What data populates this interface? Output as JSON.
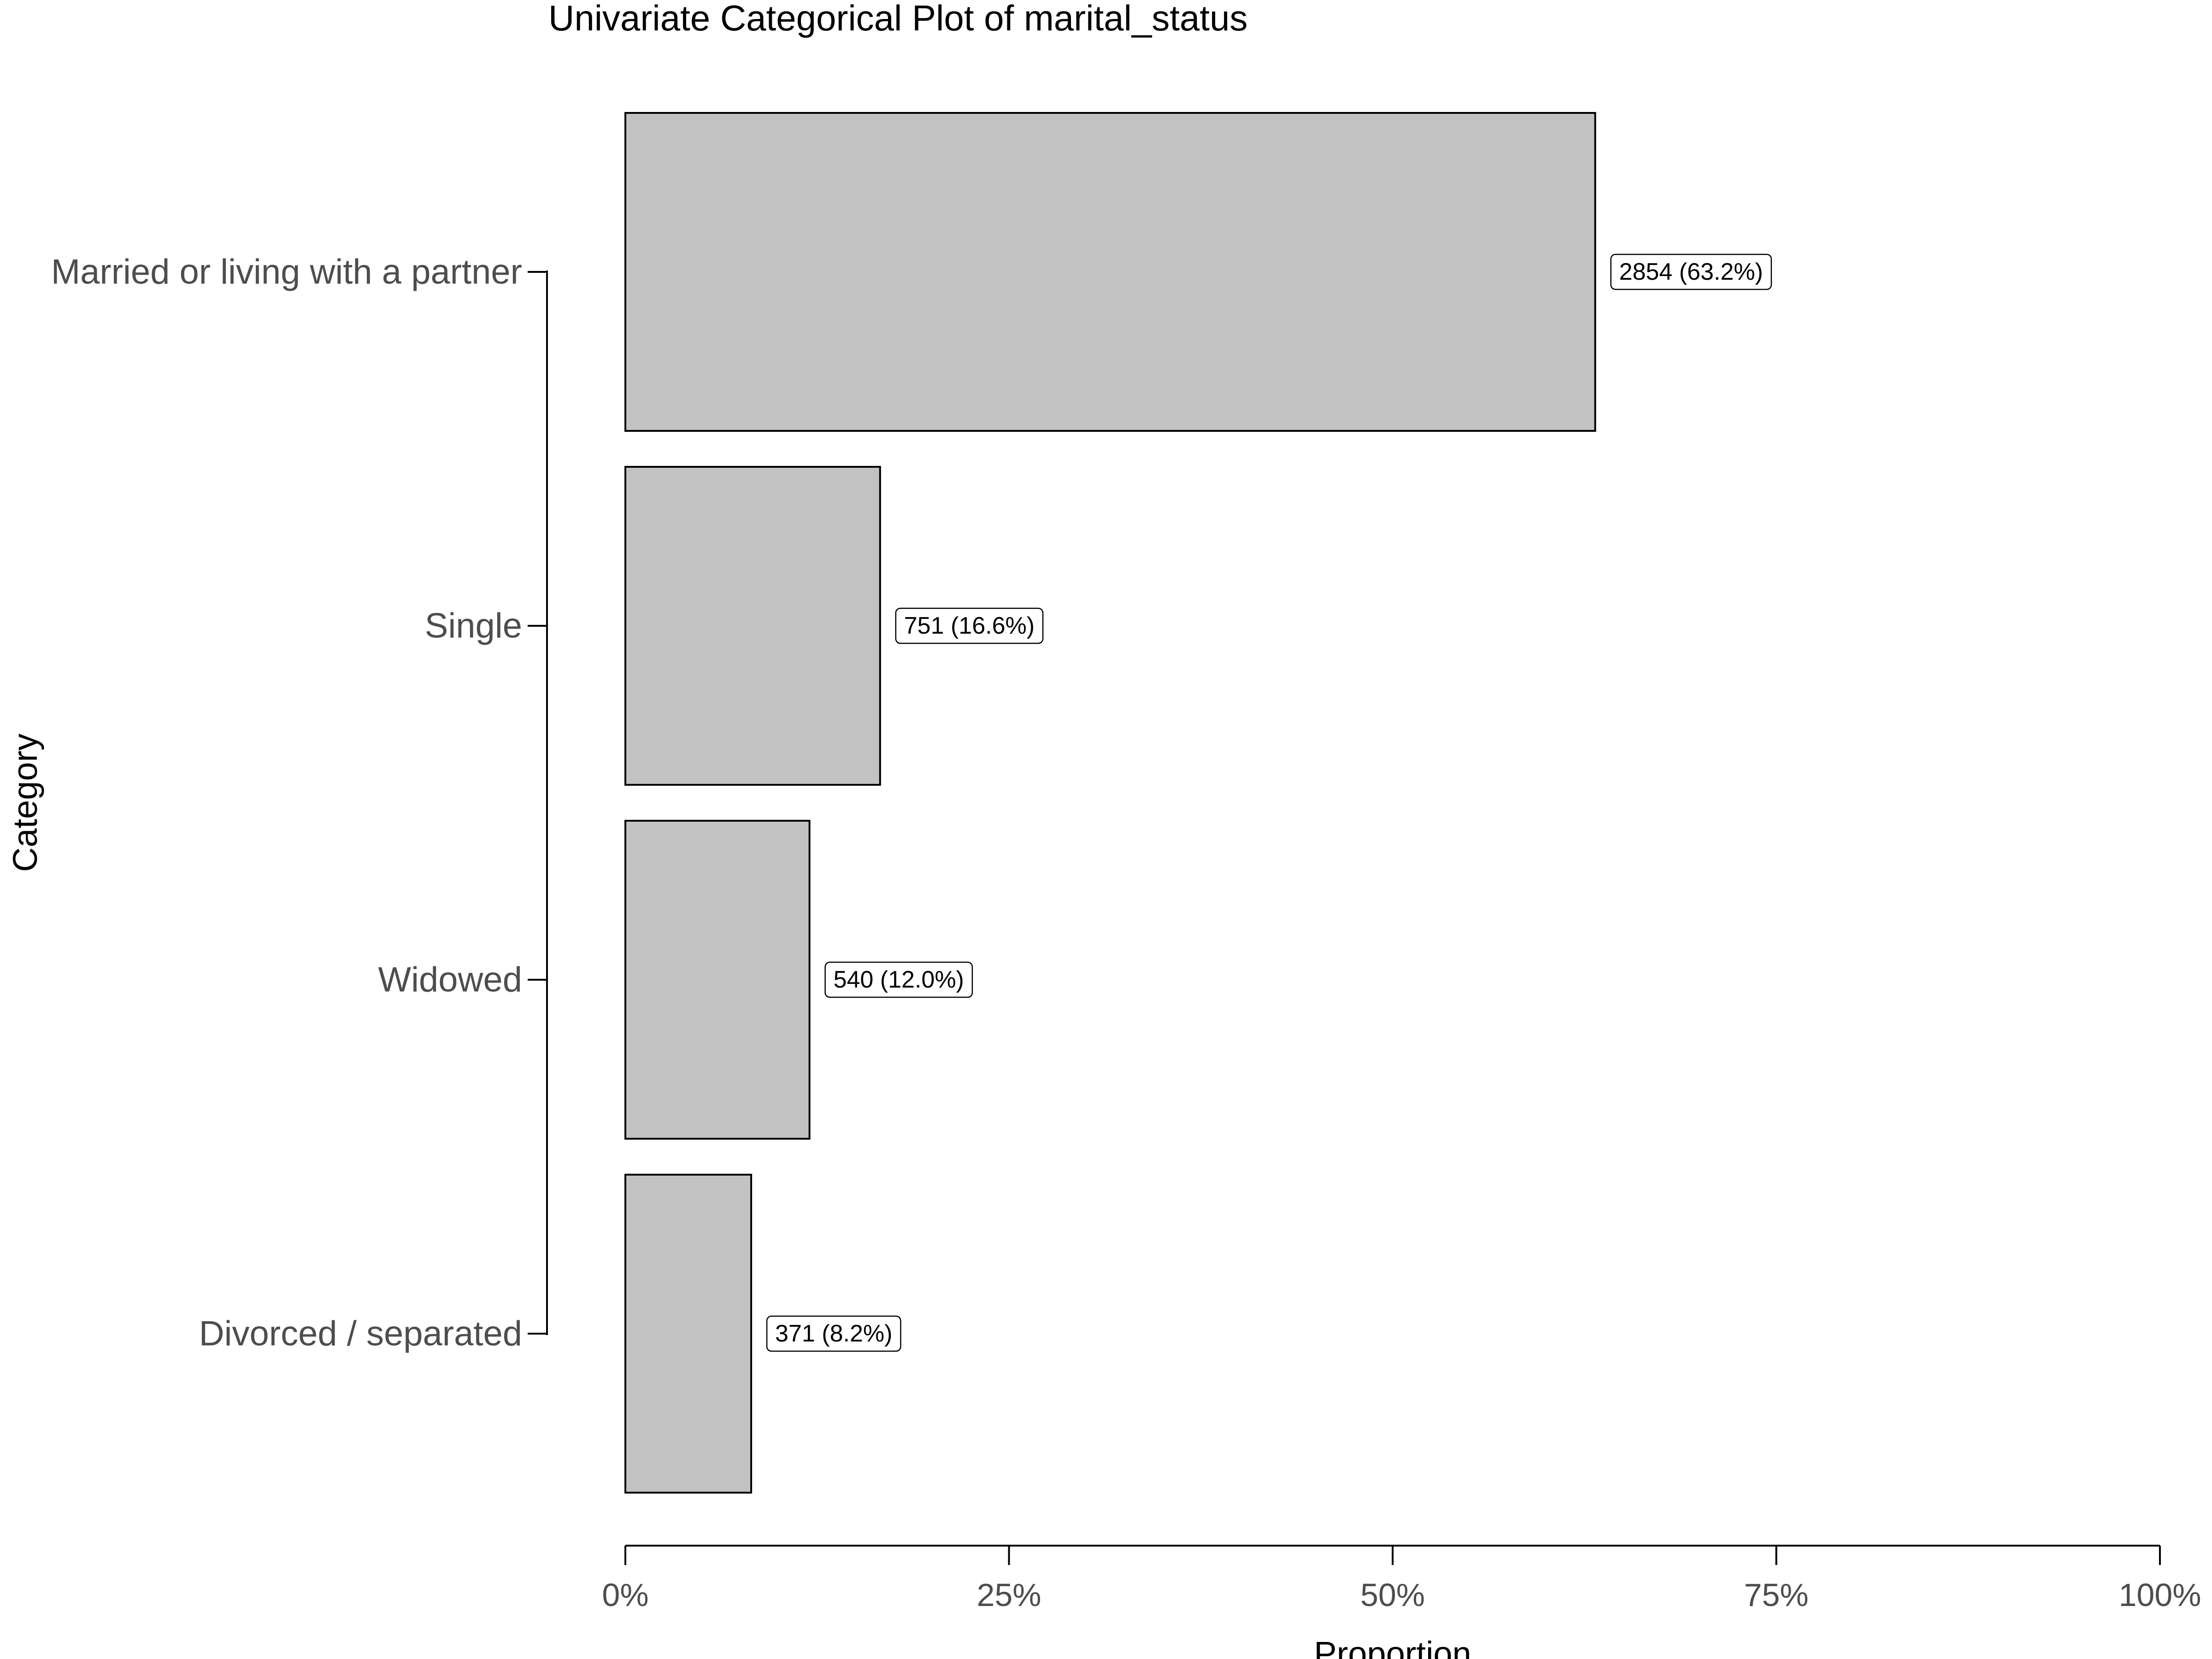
{
  "chart_data": {
    "type": "bar",
    "orientation": "horizontal",
    "title": "Univariate Categorical Plot of marital_status",
    "xlabel": "Proportion",
    "ylabel": "Category",
    "xlim": [
      0,
      1
    ],
    "x_ticks": [
      {
        "value": 0,
        "label": "0%"
      },
      {
        "value": 0.25,
        "label": "25%"
      },
      {
        "value": 0.5,
        "label": "50%"
      },
      {
        "value": 0.75,
        "label": "75%"
      },
      {
        "value": 1,
        "label": "100%"
      }
    ],
    "categories": [
      "Married or living with a partner",
      "Single",
      "Widowed",
      "Divorced / separated"
    ],
    "counts": [
      2854,
      751,
      540,
      371
    ],
    "values": [
      0.632,
      0.166,
      0.12,
      0.082
    ],
    "data_labels": [
      "2854 (63.2%)",
      "751 (16.6%)",
      "540 (12.0%)",
      "371 (8.2%)"
    ],
    "bar_color": "#c2c2c2",
    "grid": false,
    "legend": "none"
  }
}
